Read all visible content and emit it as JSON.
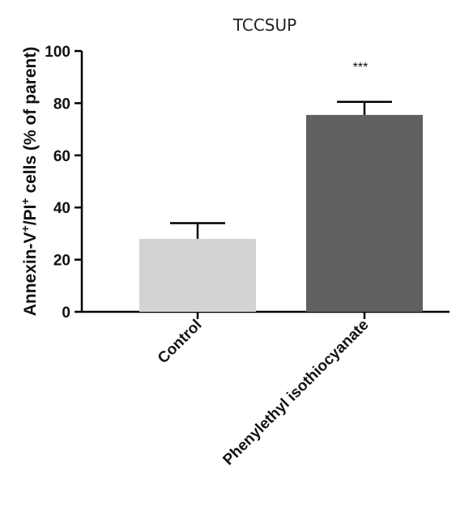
{
  "chart_data": {
    "type": "bar",
    "title": "TCCSUP",
    "ylabel": {
      "base1": "Annexin-V",
      "sup1": "+",
      "base2": "/PI",
      "sup2": "+",
      "base3": " cells (% of parent)"
    },
    "xlabel": "",
    "ylim": [
      0,
      100
    ],
    "yticks": [
      0,
      20,
      40,
      60,
      80,
      100
    ],
    "ytick_labels": [
      "0",
      "20",
      "40",
      "60",
      "80",
      "100"
    ],
    "categories": [
      "Control",
      "Phenylethyl isothiocyanate"
    ],
    "values": [
      28,
      75.5
    ],
    "errors": [
      6,
      5
    ],
    "colors": [
      "#d3d3d3",
      "#606060"
    ],
    "annotations": [
      "",
      "***"
    ],
    "grid": false,
    "legend": "none"
  }
}
